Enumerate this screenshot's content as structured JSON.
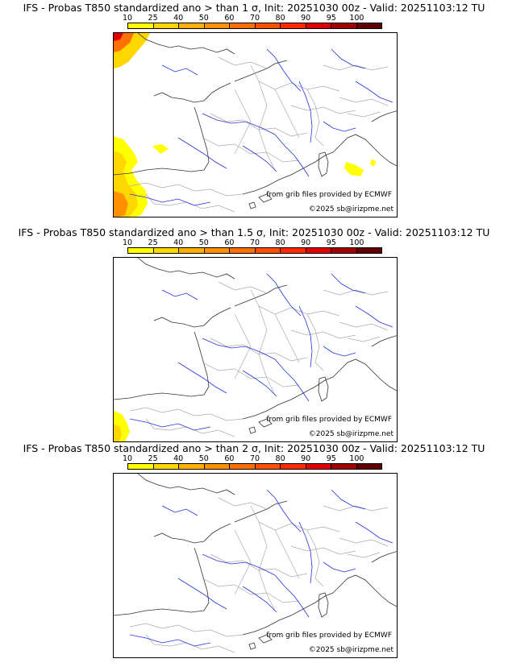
{
  "colorbar": {
    "ticks": [
      "10",
      "25",
      "40",
      "50",
      "60",
      "70",
      "80",
      "90",
      "95",
      "100"
    ],
    "colors": [
      "#ffff00",
      "#ffd700",
      "#ffb000",
      "#ff9000",
      "#ff7000",
      "#ff5000",
      "#ff2a00",
      "#e00000",
      "#a00000",
      "#600000"
    ]
  },
  "credits": {
    "source": "from grib files provided by ECMWF",
    "copyright": "©2025 sb@irizpme.net"
  },
  "panels": [
    {
      "title": "IFS - Probas T850  standardized ano > than 1 σ, Init: 20251030 00z - Valid: 20251103:12 TU"
    },
    {
      "title": "IFS - Probas T850  standardized ano > than 1.5 σ, Init: 20251030 00z - Valid: 20251103:12 TU"
    },
    {
      "title": "IFS - Probas T850  standardized ano > than 2 σ, Init: 20251030 00z - Valid: 20251103:12 TU"
    }
  ]
}
